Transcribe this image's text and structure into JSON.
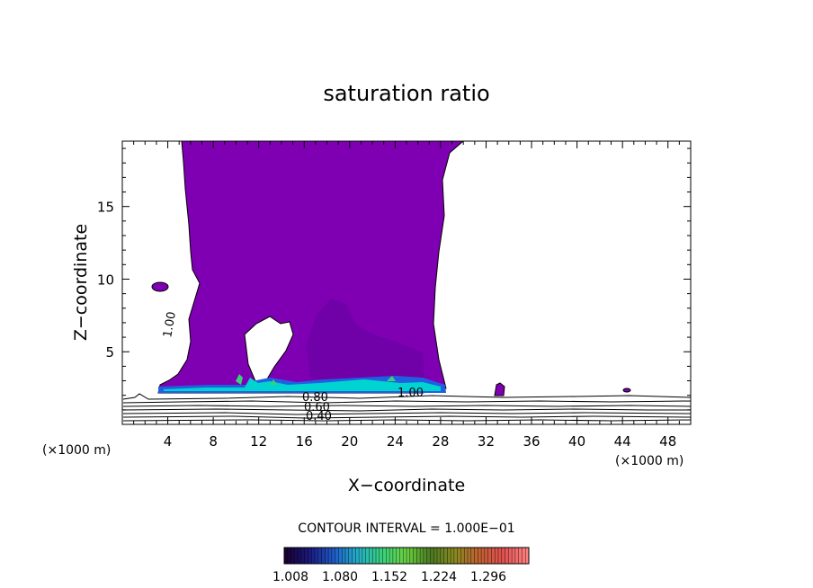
{
  "chart_data": {
    "type": "heatmap",
    "title": "saturation ratio",
    "xlabel": "X−coordinate",
    "ylabel": "Z−coordinate",
    "x_unit": "(×1000 m)",
    "y_unit": "(×1000 m)",
    "xlim": [
      0,
      50
    ],
    "ylim": [
      0,
      19.5
    ],
    "x_ticks": [
      4,
      8,
      12,
      16,
      20,
      24,
      28,
      32,
      36,
      40,
      44,
      48
    ],
    "y_ticks": [
      5,
      10,
      15
    ],
    "contour_interval_text": "CONTOUR INTERVAL = 1.000E−01",
    "contour_labels": [
      "1.00",
      "0.80",
      "0.60",
      "0.40",
      "1.00"
    ],
    "colorbar": {
      "ticks": [
        "1.008",
        "1.080",
        "1.152",
        "1.224",
        "1.296"
      ],
      "colors": [
        "#1a0030",
        "#1a1a80",
        "#1f5cc8",
        "#23b0c8",
        "#39d27a",
        "#6ad040",
        "#4a7a20",
        "#8a8a20",
        "#c06030",
        "#e05050",
        "#ff8080"
      ]
    },
    "colors": {
      "supersaturated_fill": "#7f00b3",
      "inner_core": "#7000a8",
      "base_layer_cyan": "#00d4d0",
      "base_layer_blue": "#2060e0",
      "contour_line": "#000000"
    }
  }
}
